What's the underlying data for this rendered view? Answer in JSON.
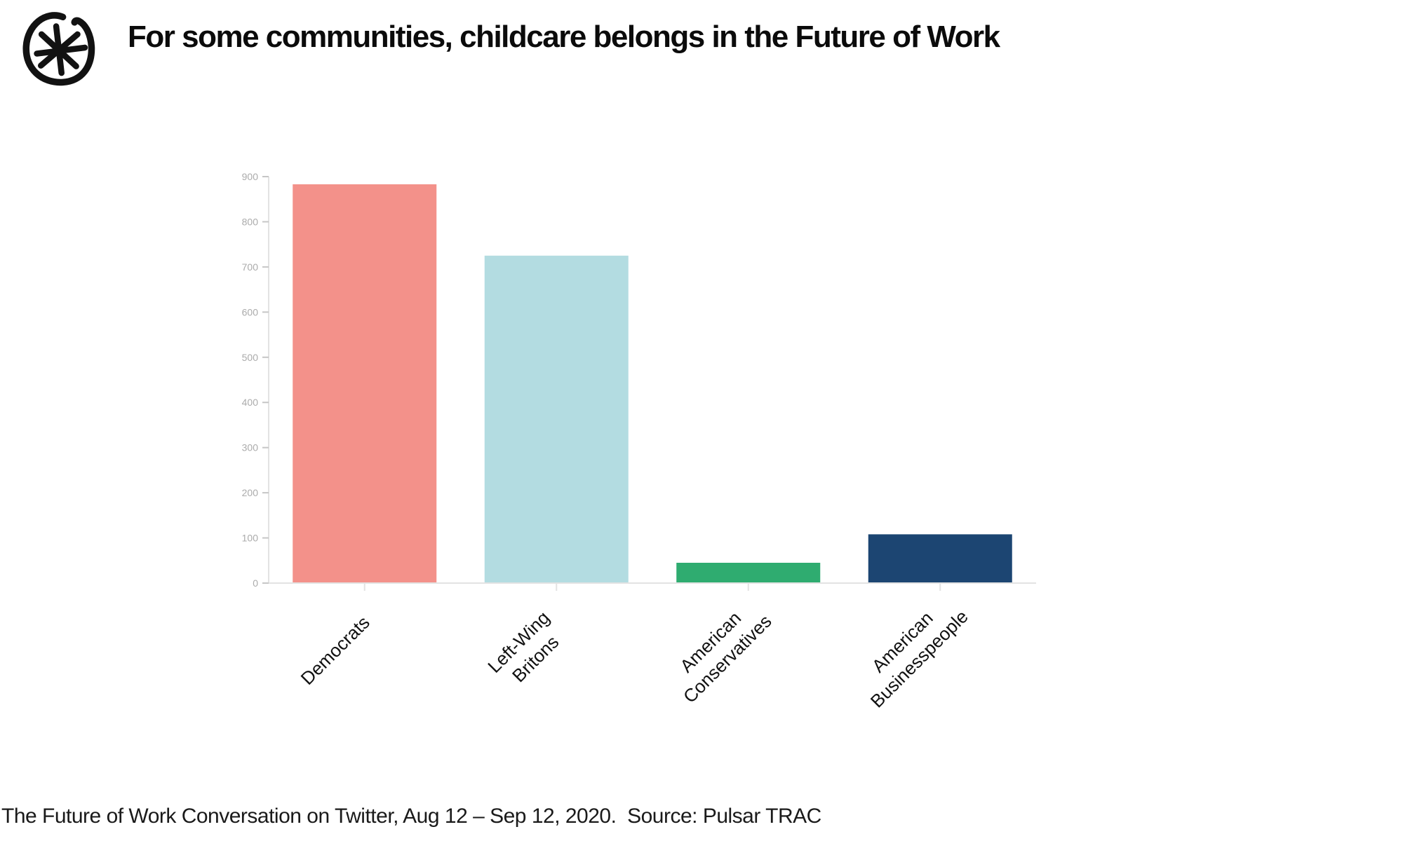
{
  "header": {
    "logo_icon": "asterisk-circle-logo",
    "title": "For some communities, childcare belongs in the Future of Work"
  },
  "chart_data": {
    "type": "bar",
    "title": "For some communities, childcare belongs in the Future of Work",
    "categories": [
      "Democrats",
      "Left-Wing Britons",
      "American Conservatives",
      "American Businesspeople"
    ],
    "category_lines": [
      [
        "Democrats"
      ],
      [
        "Left-Wing",
        "Britons"
      ],
      [
        "American",
        "Conservatives"
      ],
      [
        "American",
        "Businesspeople"
      ]
    ],
    "values": [
      883,
      725,
      45,
      108
    ],
    "bar_colors": [
      "#F3918A",
      "#B3DCE1",
      "#2FAC70",
      "#1C4572"
    ],
    "ylim": [
      0,
      900
    ],
    "yticks": [
      0,
      100,
      200,
      300,
      400,
      500,
      600,
      700,
      800,
      900
    ],
    "xlabel": "",
    "ylabel": "",
    "grid": "off",
    "legend": "none",
    "axis_color": "#E3E3E3",
    "tick_color": "#C6C6C6",
    "tick_label_color": "#ABABAB",
    "category_label_color": "#111111"
  },
  "footer": {
    "caption": "The Future of Work Conversation on Twitter, Aug 12 – Sep 12, 2020.  Source: Pulsar TRAC"
  }
}
